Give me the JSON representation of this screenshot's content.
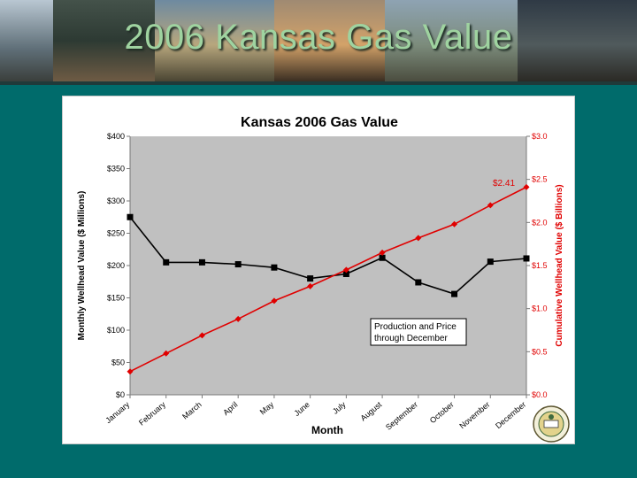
{
  "slide": {
    "title": "2006 Kansas Gas Value"
  },
  "chart_data": {
    "type": "line",
    "title": "Kansas 2006 Gas Value",
    "xlabel": "Month",
    "ylabel_left": "Monthly Wellhead Value ($ Millions)",
    "ylabel_right": "Cumulative Wellhead Value ($ Billions)",
    "categories": [
      "January",
      "February",
      "March",
      "April",
      "May",
      "June",
      "July",
      "August",
      "September",
      "October",
      "November",
      "December"
    ],
    "y_left_ticks": [
      "$0",
      "$50",
      "$100",
      "$150",
      "$200",
      "$250",
      "$300",
      "$350",
      "$400"
    ],
    "y_right_ticks": [
      "$0.0",
      "$0.5",
      "$1.0",
      "$1.5",
      "$2.0",
      "$2.5",
      "$3.0"
    ],
    "ylim_left": [
      0,
      400
    ],
    "ylim_right": [
      0,
      3.0
    ],
    "grid": false,
    "plot_background": "#c0c0c0",
    "series": [
      {
        "axis": "left",
        "color": "#000000",
        "marker": "square",
        "values": [
          275,
          205,
          205,
          202,
          197,
          180,
          187,
          212,
          174,
          156,
          206,
          211
        ]
      },
      {
        "axis": "right",
        "color": "#e00000",
        "marker": "diamond",
        "values": [
          0.27,
          0.48,
          0.69,
          0.88,
          1.09,
          1.26,
          1.45,
          1.65,
          1.82,
          1.98,
          2.2,
          2.41
        ]
      }
    ],
    "annotations": [
      {
        "text": "$2.41",
        "color": "#e00000",
        "near": "december-cumulative"
      },
      {
        "lines": [
          "Production and Price",
          "through December"
        ]
      }
    ]
  }
}
